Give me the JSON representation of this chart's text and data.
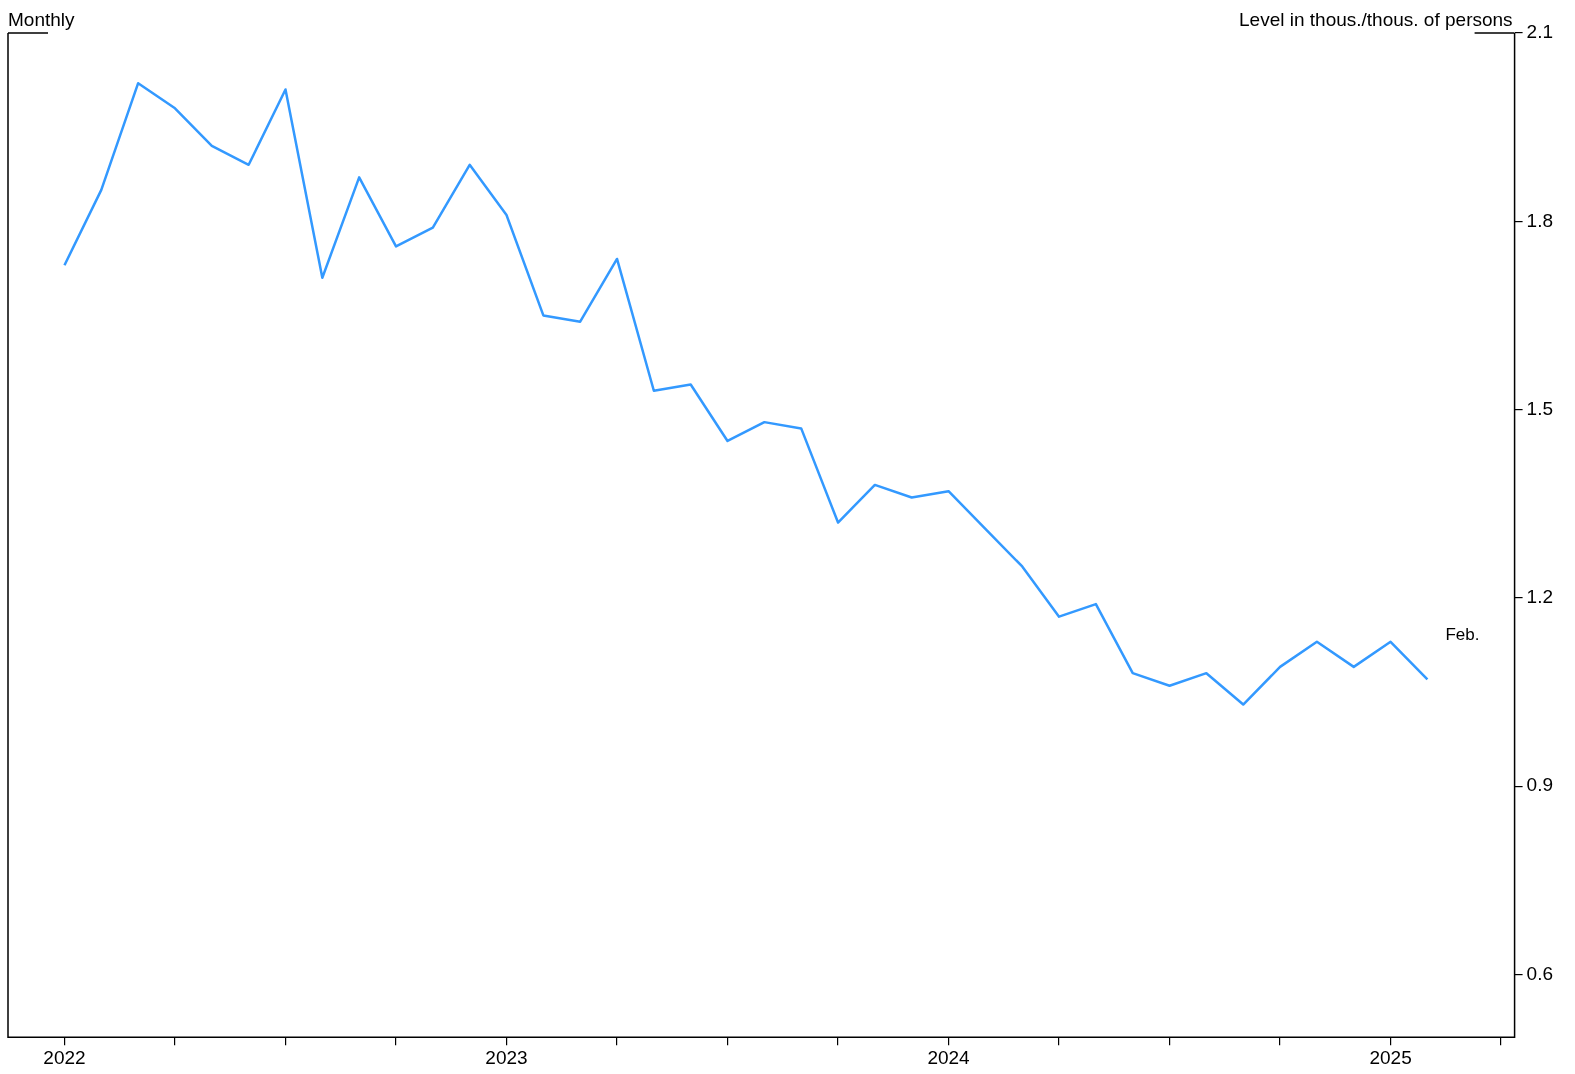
{
  "chart_data": {
    "type": "line",
    "title": "Monthly",
    "ylabel": "Level in thous./thous. of persons",
    "x": [
      "2022-01",
      "2022-02",
      "2022-03",
      "2022-04",
      "2022-05",
      "2022-06",
      "2022-07",
      "2022-08",
      "2022-09",
      "2022-10",
      "2022-11",
      "2022-12",
      "2023-01",
      "2023-02",
      "2023-03",
      "2023-04",
      "2023-05",
      "2023-06",
      "2023-07",
      "2023-08",
      "2023-09",
      "2023-10",
      "2023-11",
      "2023-12",
      "2024-01",
      "2024-02",
      "2024-03",
      "2024-04",
      "2024-05",
      "2024-06",
      "2024-07",
      "2024-08",
      "2024-09",
      "2024-10",
      "2024-11",
      "2024-12",
      "2025-01",
      "2025-02"
    ],
    "series": [
      {
        "color": "#3399ff",
        "values": [
          1.73,
          1.85,
          2.02,
          1.98,
          1.92,
          1.89,
          2.01,
          1.71,
          1.87,
          1.76,
          1.79,
          1.89,
          1.81,
          1.65,
          1.64,
          1.74,
          1.53,
          1.54,
          1.45,
          1.48,
          1.47,
          1.32,
          1.38,
          1.36,
          1.37,
          1.31,
          1.25,
          1.17,
          1.19,
          1.08,
          1.06,
          1.08,
          1.03,
          1.09,
          1.13,
          1.09,
          1.13,
          1.07
        ]
      }
    ],
    "xlim": [
      "2021-11-15",
      "2025-04-12"
    ],
    "xticks": [
      {
        "value": "2022",
        "label": "2022"
      },
      {
        "value": "2022-04",
        "label": null
      },
      {
        "value": "2022-07",
        "label": null
      },
      {
        "value": "2022-10",
        "label": null
      },
      {
        "value": "2023",
        "label": "2023"
      },
      {
        "value": "2023-04",
        "label": null
      },
      {
        "value": "2023-07",
        "label": null
      },
      {
        "value": "2023-10",
        "label": null
      },
      {
        "value": "2024",
        "label": "2024"
      },
      {
        "value": "2024-04",
        "label": null
      },
      {
        "value": "2024-07",
        "label": null
      },
      {
        "value": "2024-10",
        "label": null
      },
      {
        "value": "2025",
        "label": "2025"
      },
      {
        "value": "2025-04",
        "label": null
      }
    ],
    "ylim": [
      0.5,
      2.1
    ],
    "yticks": [
      0.6,
      0.9,
      1.2,
      1.5,
      1.8,
      2.1
    ],
    "grid": false,
    "legend": false,
    "annotations": [
      {
        "text": "Feb.",
        "x": "2025-02",
        "y": 1.07
      }
    ]
  }
}
